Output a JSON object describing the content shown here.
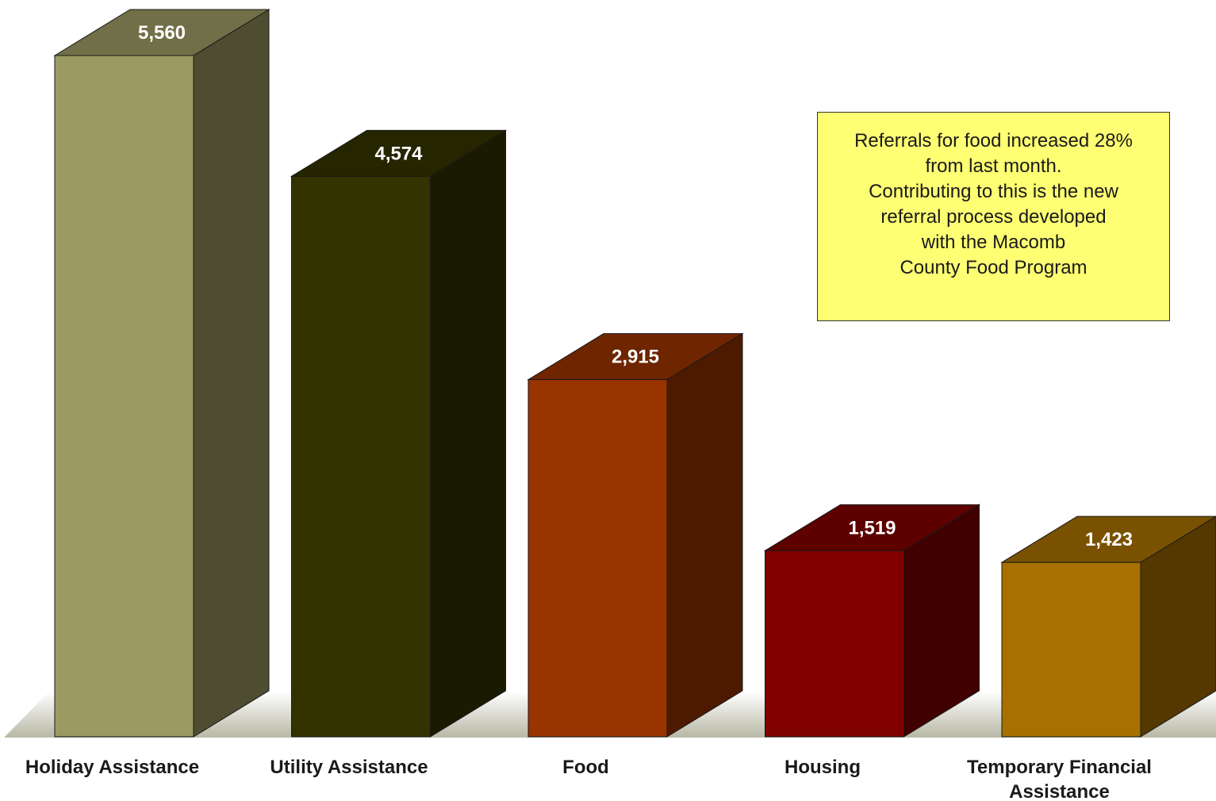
{
  "chart_data": {
    "type": "bar",
    "style": "3d",
    "categories": [
      "Holiday Assistance",
      "Utility Assistance",
      "Food",
      "Housing",
      "Temporary Financial Assistance"
    ],
    "category_label_lines": [
      [
        "Holiday Assistance"
      ],
      [
        "Utility Assistance"
      ],
      [
        "Food"
      ],
      [
        "Housing"
      ],
      [
        "Temporary Financial",
        "Assistance"
      ]
    ],
    "values": [
      5560,
      4574,
      2915,
      1519,
      1423
    ],
    "data_labels": [
      "5,560",
      "4,574",
      "2,915",
      "1,519",
      "1,423"
    ],
    "colors": [
      "#9c9a63",
      "#333300",
      "#993300",
      "#800000",
      "#a87000"
    ],
    "title": "",
    "xlabel": "",
    "ylabel": "",
    "ylim": [
      0,
      5560
    ],
    "grid": false,
    "legend": "none"
  },
  "annotation": {
    "lines": [
      "Referrals for food increased 28%",
      "from last month.",
      "Contributing to this is the new",
      "referral process developed",
      "with the Macomb",
      "County Food Program"
    ],
    "background": "#ffff73"
  }
}
